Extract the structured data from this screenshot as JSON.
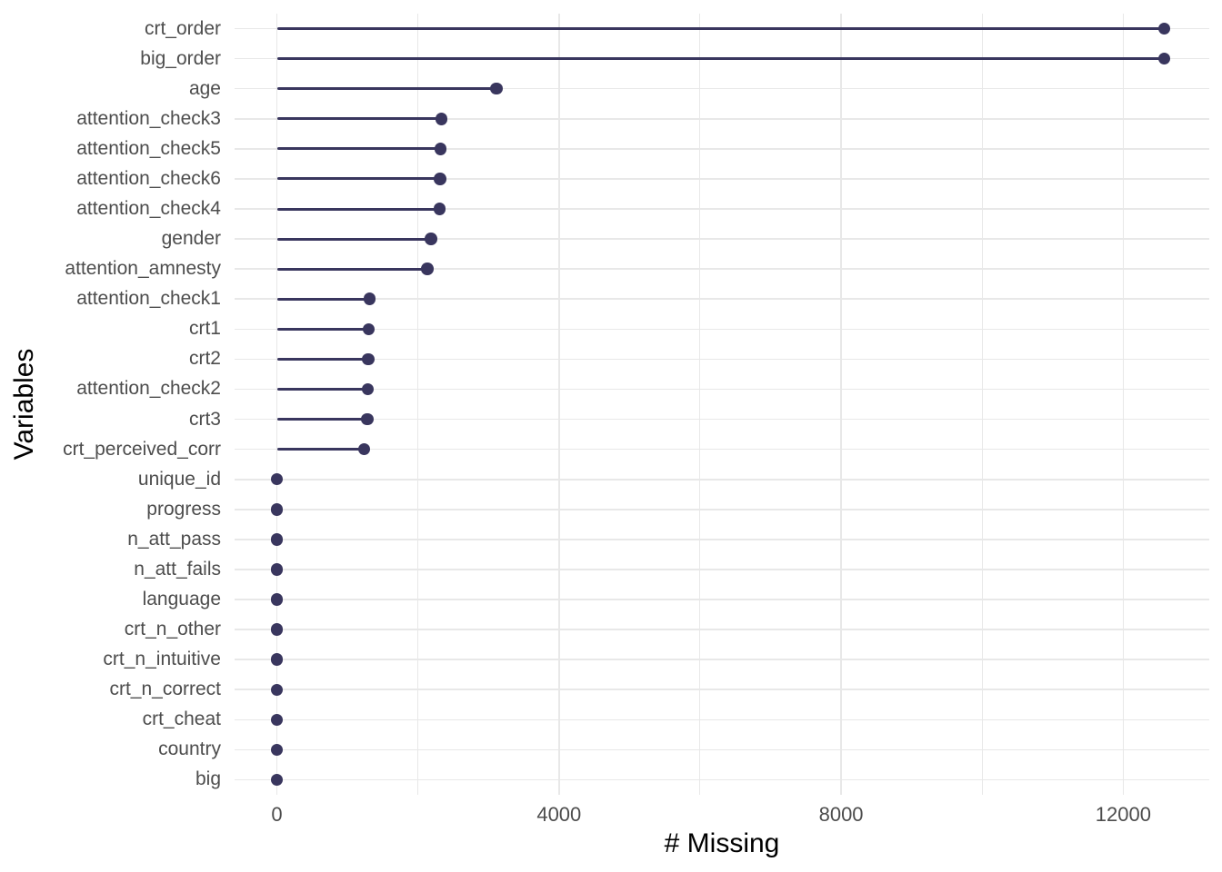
{
  "chart_data": {
    "type": "lollipop",
    "title": "",
    "xlabel": "# Missing",
    "ylabel": "Variables",
    "legend": "none",
    "grid": true,
    "categories": [
      "crt_order",
      "big_order",
      "age",
      "attention_check3",
      "attention_check5",
      "attention_check6",
      "attention_check4",
      "gender",
      "attention_amnesty",
      "attention_check1",
      "crt1",
      "crt2",
      "attention_check2",
      "crt3",
      "crt_perceived_corr",
      "unique_id",
      "progress",
      "n_att_pass",
      "n_att_fails",
      "language",
      "crt_n_other",
      "crt_n_intuitive",
      "crt_n_correct",
      "crt_cheat",
      "country",
      "big"
    ],
    "values": [
      12585,
      12585,
      3110,
      2335,
      2320,
      2315,
      2310,
      2185,
      2130,
      1315,
      1300,
      1295,
      1290,
      1285,
      1240,
      0,
      0,
      0,
      0,
      0,
      0,
      0,
      0,
      0,
      0,
      0
    ],
    "x_ticks": [
      0,
      4000,
      8000,
      12000
    ],
    "x_tick_labels": [
      "0",
      "4000",
      "8000",
      "12000"
    ],
    "x_minor_gridlines": [
      2000,
      6000,
      10000
    ],
    "xlim": [
      -600,
      13220
    ],
    "colors": {
      "lollipop": "#39365E",
      "gridline": "#E8E8E8",
      "tick_text": "#4D4D4D",
      "axis_title_text": "#000000",
      "background": "#FFFFFF"
    }
  }
}
